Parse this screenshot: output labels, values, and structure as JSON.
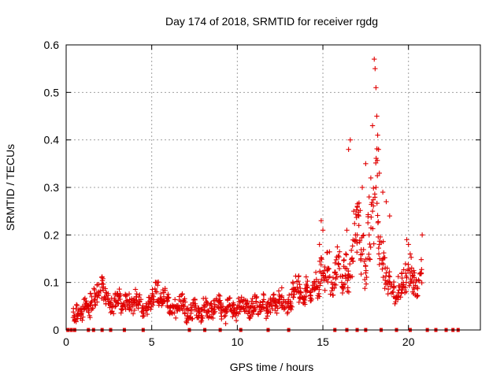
{
  "chart_data": {
    "type": "scatter",
    "title": "Day 174 of 2018, SRMTID for receiver rgdg",
    "xlabel": "GPS time / hours",
    "ylabel": "SRMTID / TECUs",
    "xlim": [
      0,
      24.2
    ],
    "ylim": [
      0,
      0.6
    ],
    "xticks": [
      0,
      5,
      10,
      15,
      20
    ],
    "xtick_labels": [
      "0",
      "5",
      "10",
      "15",
      "20"
    ],
    "yticks": [
      0,
      0.1,
      0.2,
      0.3,
      0.4,
      0.5,
      0.6
    ],
    "ytick_labels": [
      "0",
      "0.1",
      "0.2",
      "0.3",
      "0.4",
      "0.5",
      "0.6"
    ],
    "grid": true,
    "marker": "+",
    "color": "#e00000",
    "series": [
      {
        "name": "SRMTID",
        "note": "dense time series, values estimated from gridlines (hour, TECU)",
        "x": [
          0.5,
          0.7,
          0.9,
          1.1,
          1.3,
          1.5,
          1.7,
          1.9,
          2.1,
          2.3,
          2.5,
          2.7,
          2.9,
          3.1,
          3.3,
          3.5,
          3.7,
          3.9,
          4.1,
          4.3,
          4.5,
          4.7,
          4.9,
          5.1,
          5.3,
          5.5,
          5.7,
          5.9,
          6.1,
          6.3,
          6.5,
          6.7,
          6.9,
          7.1,
          7.3,
          7.5,
          7.7,
          7.9,
          8.1,
          8.3,
          8.5,
          8.7,
          8.9,
          9.1,
          9.3,
          9.5,
          9.7,
          9.9,
          10.1,
          10.3,
          10.5,
          10.7,
          10.9,
          11.1,
          11.3,
          11.5,
          11.7,
          11.9,
          12.1,
          12.3,
          12.5,
          12.7,
          12.9,
          13.1,
          13.3,
          13.5,
          13.7,
          13.9,
          14.1,
          14.3,
          14.5,
          14.7,
          14.9,
          15.1,
          15.3,
          15.5,
          15.7,
          15.9,
          16.1,
          16.3,
          16.5,
          16.7,
          16.9,
          17.1,
          17.3,
          17.5,
          17.7,
          17.9,
          18.1,
          18.3,
          18.5,
          18.7,
          18.9,
          19.1,
          19.3,
          19.5,
          19.7,
          19.9,
          20.1,
          20.3,
          20.5,
          20.7
        ],
        "y": [
          0.03,
          0.04,
          0.035,
          0.05,
          0.04,
          0.06,
          0.07,
          0.08,
          0.09,
          0.07,
          0.06,
          0.05,
          0.06,
          0.07,
          0.05,
          0.06,
          0.06,
          0.05,
          0.07,
          0.06,
          0.04,
          0.05,
          0.06,
          0.07,
          0.08,
          0.06,
          0.07,
          0.06,
          0.05,
          0.05,
          0.04,
          0.06,
          0.05,
          0.03,
          0.04,
          0.05,
          0.04,
          0.03,
          0.05,
          0.04,
          0.04,
          0.05,
          0.06,
          0.04,
          0.03,
          0.05,
          0.04,
          0.03,
          0.05,
          0.06,
          0.05,
          0.04,
          0.05,
          0.06,
          0.05,
          0.06,
          0.04,
          0.05,
          0.06,
          0.05,
          0.07,
          0.06,
          0.05,
          0.06,
          0.08,
          0.09,
          0.08,
          0.07,
          0.09,
          0.08,
          0.1,
          0.09,
          0.12,
          0.11,
          0.13,
          0.1,
          0.12,
          0.14,
          0.1,
          0.13,
          0.11,
          0.15,
          0.2,
          0.22,
          0.16,
          0.12,
          0.2,
          0.25,
          0.3,
          0.18,
          0.15,
          0.12,
          0.1,
          0.08,
          0.07,
          0.09,
          0.1,
          0.11,
          0.12,
          0.1,
          0.09,
          0.12
        ],
        "x_extra": [
          16.4,
          16.5,
          16.6,
          16.8,
          17.0,
          17.1,
          17.3,
          17.5,
          17.7,
          17.8,
          17.9,
          18.0,
          18.05,
          18.1,
          18.15,
          18.2,
          18.25,
          18.3,
          18.5,
          18.7,
          18.9,
          19.9,
          20.0,
          20.1,
          20.8,
          14.9,
          15.0,
          14.8
        ],
        "y_extra": [
          0.21,
          0.38,
          0.4,
          0.25,
          0.2,
          0.24,
          0.3,
          0.35,
          0.28,
          0.32,
          0.43,
          0.57,
          0.55,
          0.51,
          0.45,
          0.41,
          0.38,
          0.33,
          0.29,
          0.27,
          0.24,
          0.19,
          0.18,
          0.16,
          0.2,
          0.23,
          0.21,
          0.18
        ],
        "zero_x": [
          0.1,
          0.3,
          0.5,
          1.3,
          1.6,
          2.1,
          2.6,
          3.4,
          4.5,
          7.2,
          8.1,
          9.0,
          10.2,
          11.8,
          13.0,
          15.7,
          16.4,
          17.0,
          17.5,
          18.4,
          19.3,
          20.1,
          21.1,
          21.6,
          22.2,
          22.6,
          22.9
        ]
      }
    ]
  }
}
